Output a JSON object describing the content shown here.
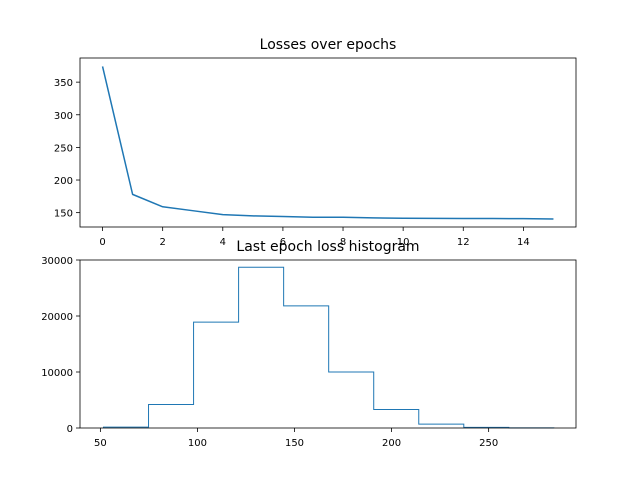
{
  "chart_data": [
    {
      "type": "line",
      "title": "Losses over epochs",
      "xlabel": "",
      "ylabel": "",
      "xlim": [
        -0.75,
        15.75
      ],
      "ylim": [
        128,
        387
      ],
      "xticks": [
        0,
        2,
        4,
        6,
        8,
        10,
        12,
        14
      ],
      "yticks": [
        150,
        200,
        250,
        300,
        350
      ],
      "x": [
        0,
        1,
        2,
        3,
        4,
        5,
        6,
        7,
        8,
        9,
        10,
        11,
        12,
        13,
        14,
        15
      ],
      "series": [
        {
          "values": [
            374,
            178,
            159,
            153,
            147,
            145,
            144,
            143,
            143,
            142,
            141.5,
            141.2,
            141,
            141,
            140.8,
            140.2
          ],
          "color": "#1f77b4"
        }
      ],
      "grid": false
    },
    {
      "type": "bar",
      "histtype": "step",
      "title": "Last epoch loss histogram",
      "xlabel": "",
      "ylabel": "",
      "xlim": [
        39.5,
        295
      ],
      "ylim": [
        0,
        30000
      ],
      "xticks": [
        50,
        100,
        150,
        200,
        250
      ],
      "yticks": [
        0,
        10000,
        20000,
        30000
      ],
      "bin_edges": [
        51.6,
        74.8,
        98.0,
        121.2,
        144.4,
        167.6,
        190.8,
        214.0,
        237.2,
        260.4,
        283.6
      ],
      "counts": [
        150,
        4200,
        18900,
        28700,
        21800,
        10000,
        3300,
        700,
        120,
        20
      ],
      "color": "#1f77b4",
      "grid": false
    }
  ]
}
